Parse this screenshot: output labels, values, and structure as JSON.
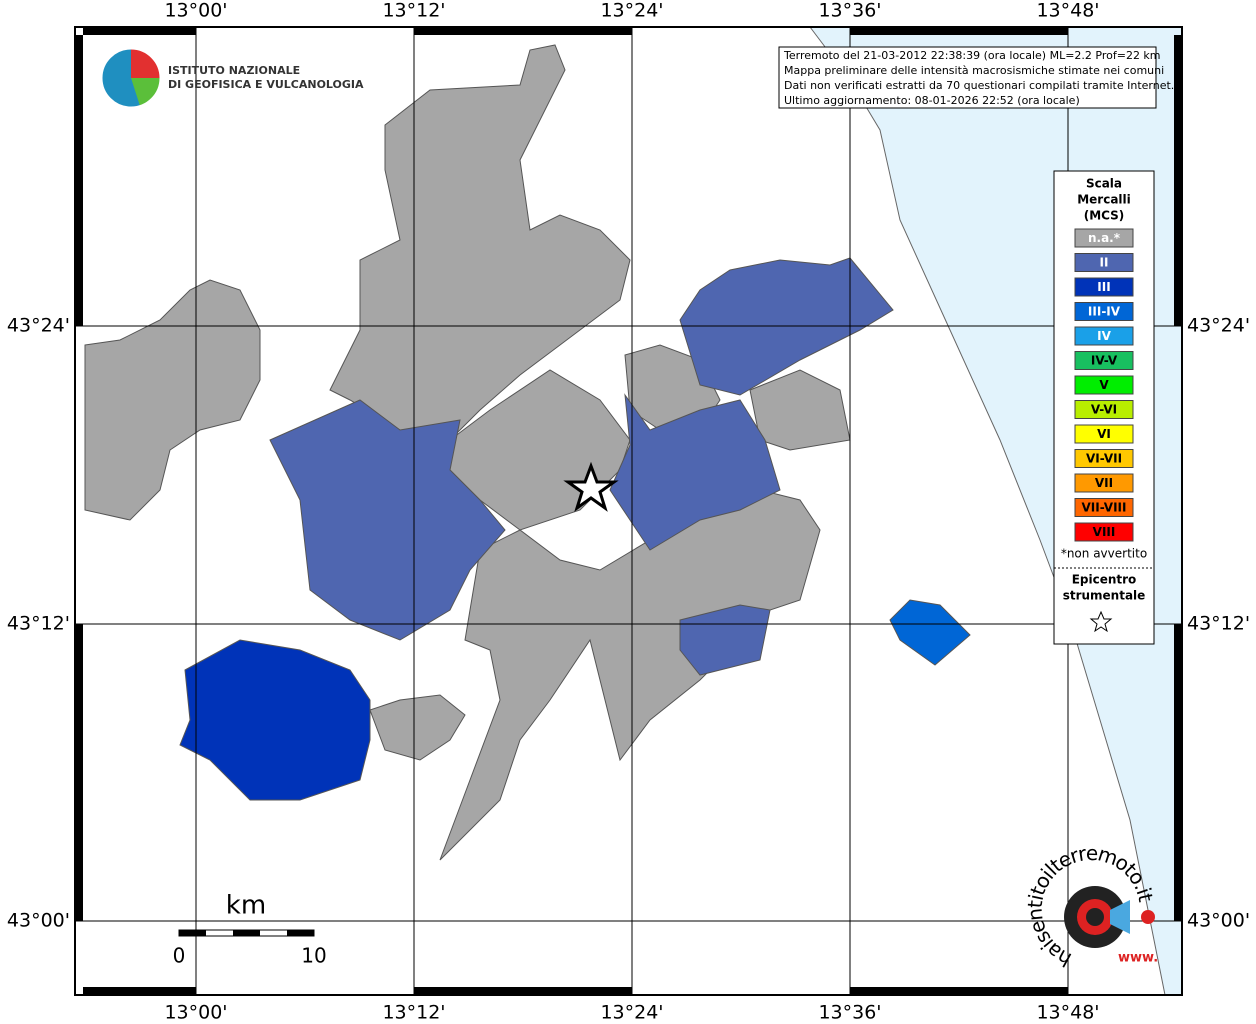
{
  "header": {
    "lon_labels": [
      "13°00'",
      "13°12'",
      "13°24'",
      "13°36'",
      "13°48'"
    ],
    "lat_labels": [
      "43°24'",
      "43°12'",
      "43°00'"
    ]
  },
  "logo": {
    "line1": "ISTITUTO NAZIONALE",
    "line2": "DI GEOFISICA E VULCANOLOGIA"
  },
  "info": [
    "Terremoto del 21-03-2012 22:38:39 (ora locale) ML=2.2 Prof=22 km",
    "Mappa preliminare delle intensità macrosismiche stimate nei comuni",
    "Dati non verificati estratti da 70 questionari compilati tramite Internet.",
    "Ultimo aggiornamento: 08-01-2026 22:52 (ora locale)"
  ],
  "legend": {
    "title": [
      "Scala",
      "Mercalli",
      "(MCS)"
    ],
    "items": [
      {
        "label": "n.a.*",
        "color": "#a6a6a6"
      },
      {
        "label": "II",
        "color": "#4f66b0"
      },
      {
        "label": "III",
        "color": "#0033b8"
      },
      {
        "label": "III-IV",
        "color": "#0066d6"
      },
      {
        "label": "IV",
        "color": "#1aa0e8"
      },
      {
        "label": "IV-V",
        "color": "#18c060"
      },
      {
        "label": "V",
        "color": "#00ee00"
      },
      {
        "label": "V-VI",
        "color": "#b8ee00"
      },
      {
        "label": "VI",
        "color": "#ffff00"
      },
      {
        "label": "VI-VII",
        "color": "#ffc800"
      },
      {
        "label": "VII",
        "color": "#ff9900"
      },
      {
        "label": "VII-VIII",
        "color": "#ff6600"
      },
      {
        "label": "VIII",
        "color": "#ff0000"
      }
    ],
    "note": "*non avvertito",
    "epicenter": [
      "Epicentro",
      "strumentale"
    ]
  },
  "scalebar": {
    "unit": "km",
    "labels": [
      "0",
      "10"
    ]
  },
  "site_logo": {
    "text": "haisentitoilterremoto.it",
    "prefix": "www."
  }
}
